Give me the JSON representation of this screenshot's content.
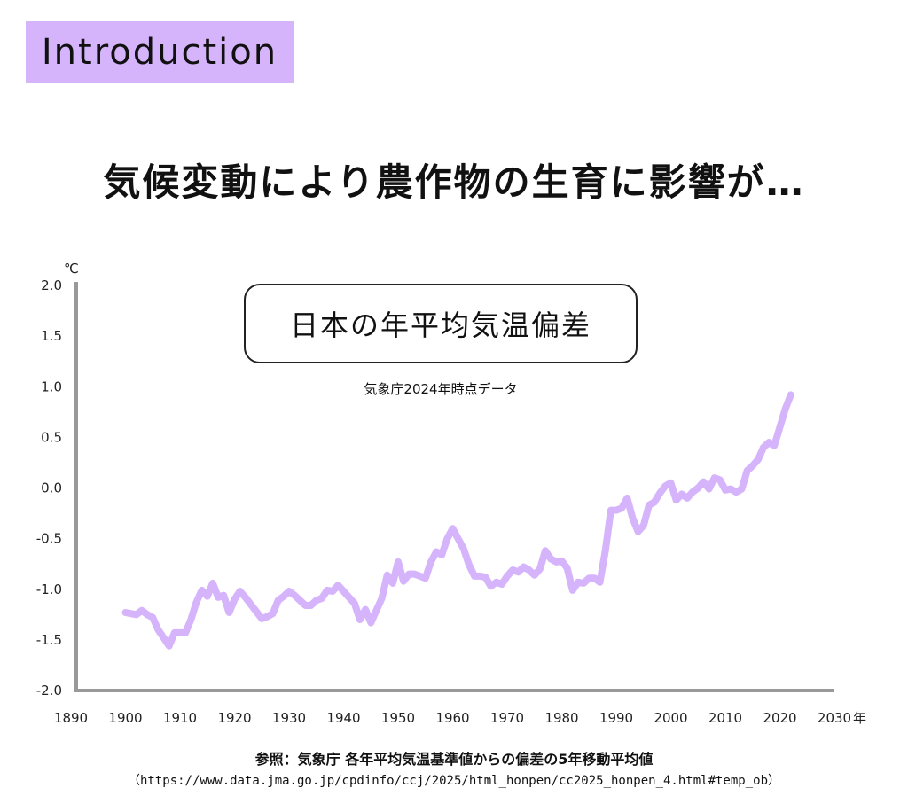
{
  "badge": {
    "label": "Introduction"
  },
  "headline": "気候変動により農作物の生育に影響が…",
  "chart_data": {
    "type": "line",
    "title": "日本の年平均気温偏差",
    "subtitle": "気象庁2024年時点データ",
    "ylabel": "℃",
    "xlabel": "年",
    "xlim": [
      1890,
      2030
    ],
    "ylim": [
      -2.0,
      2.0
    ],
    "xticks": [
      "1890",
      "1900",
      "1910",
      "1920",
      "1930",
      "1940",
      "1950",
      "1960",
      "1970",
      "1980",
      "1990",
      "2000",
      "2010",
      "2020",
      "2030"
    ],
    "yticks": [
      "2.0",
      "1.5",
      "1.0",
      "0.5",
      "0.0",
      "-0.5",
      "-1.0",
      "-1.5",
      "-2.0"
    ],
    "grid": false,
    "line_color": "#d6b4fc",
    "x": [
      1900,
      1901,
      1902,
      1903,
      1904,
      1905,
      1906,
      1907,
      1908,
      1909,
      1910,
      1911,
      1912,
      1913,
      1914,
      1915,
      1916,
      1917,
      1918,
      1919,
      1920,
      1921,
      1922,
      1923,
      1924,
      1925,
      1926,
      1927,
      1928,
      1929,
      1930,
      1931,
      1932,
      1933,
      1934,
      1935,
      1936,
      1937,
      1938,
      1939,
      1940,
      1941,
      1942,
      1943,
      1944,
      1945,
      1946,
      1947,
      1948,
      1949,
      1950,
      1951,
      1952,
      1953,
      1954,
      1955,
      1956,
      1957,
      1958,
      1959,
      1960,
      1961,
      1962,
      1963,
      1964,
      1965,
      1966,
      1967,
      1968,
      1969,
      1970,
      1971,
      1972,
      1973,
      1974,
      1975,
      1976,
      1977,
      1978,
      1979,
      1980,
      1981,
      1982,
      1983,
      1984,
      1985,
      1986,
      1987,
      1988,
      1989,
      1990,
      1991,
      1992,
      1993,
      1994,
      1995,
      1996,
      1997,
      1998,
      1999,
      2000,
      2001,
      2002,
      2003,
      2004,
      2005,
      2006,
      2007,
      2008,
      2009,
      2010,
      2011,
      2012,
      2013,
      2014,
      2015,
      2016,
      2017,
      2018,
      2019,
      2020,
      2021,
      2022
    ],
    "y": [
      -1.23,
      -1.24,
      -1.25,
      -1.21,
      -1.25,
      -1.28,
      -1.4,
      -1.48,
      -1.56,
      -1.43,
      -1.43,
      -1.43,
      -1.3,
      -1.13,
      -1.01,
      -1.07,
      -0.94,
      -1.08,
      -1.06,
      -1.23,
      -1.1,
      -1.02,
      -1.08,
      -1.15,
      -1.22,
      -1.29,
      -1.27,
      -1.24,
      -1.11,
      -1.07,
      -1.02,
      -1.06,
      -1.11,
      -1.16,
      -1.16,
      -1.11,
      -1.09,
      -1.01,
      -1.02,
      -0.96,
      -1.02,
      -1.08,
      -1.14,
      -1.3,
      -1.2,
      -1.33,
      -1.21,
      -1.09,
      -0.86,
      -0.94,
      -0.73,
      -0.92,
      -0.85,
      -0.85,
      -0.87,
      -0.89,
      -0.73,
      -0.63,
      -0.66,
      -0.5,
      -0.4,
      -0.5,
      -0.6,
      -0.76,
      -0.87,
      -0.87,
      -0.88,
      -0.97,
      -0.93,
      -0.95,
      -0.87,
      -0.81,
      -0.83,
      -0.78,
      -0.81,
      -0.86,
      -0.8,
      -0.62,
      -0.7,
      -0.73,
      -0.72,
      -0.79,
      -1.01,
      -0.93,
      -0.94,
      -0.89,
      -0.89,
      -0.93,
      -0.62,
      -0.22,
      -0.22,
      -0.2,
      -0.1,
      -0.3,
      -0.43,
      -0.37,
      -0.17,
      -0.14,
      -0.05,
      0.02,
      0.05,
      -0.12,
      -0.06,
      -0.1,
      -0.04,
      0.0,
      0.06,
      -0.01,
      0.1,
      0.08,
      -0.02,
      -0.01,
      -0.04,
      -0.01,
      0.17,
      0.22,
      0.28,
      0.4,
      0.45,
      0.42,
      0.6,
      0.78,
      0.92
    ]
  },
  "source": {
    "line1": "参照：気象庁 各年平均気温基準値からの偏差の5年移動平均値",
    "line2": "（https://www.data.jma.go.jp/cpdinfo/ccj/2025/html_honpen/cc2025_honpen_4.html#temp_ob）"
  }
}
